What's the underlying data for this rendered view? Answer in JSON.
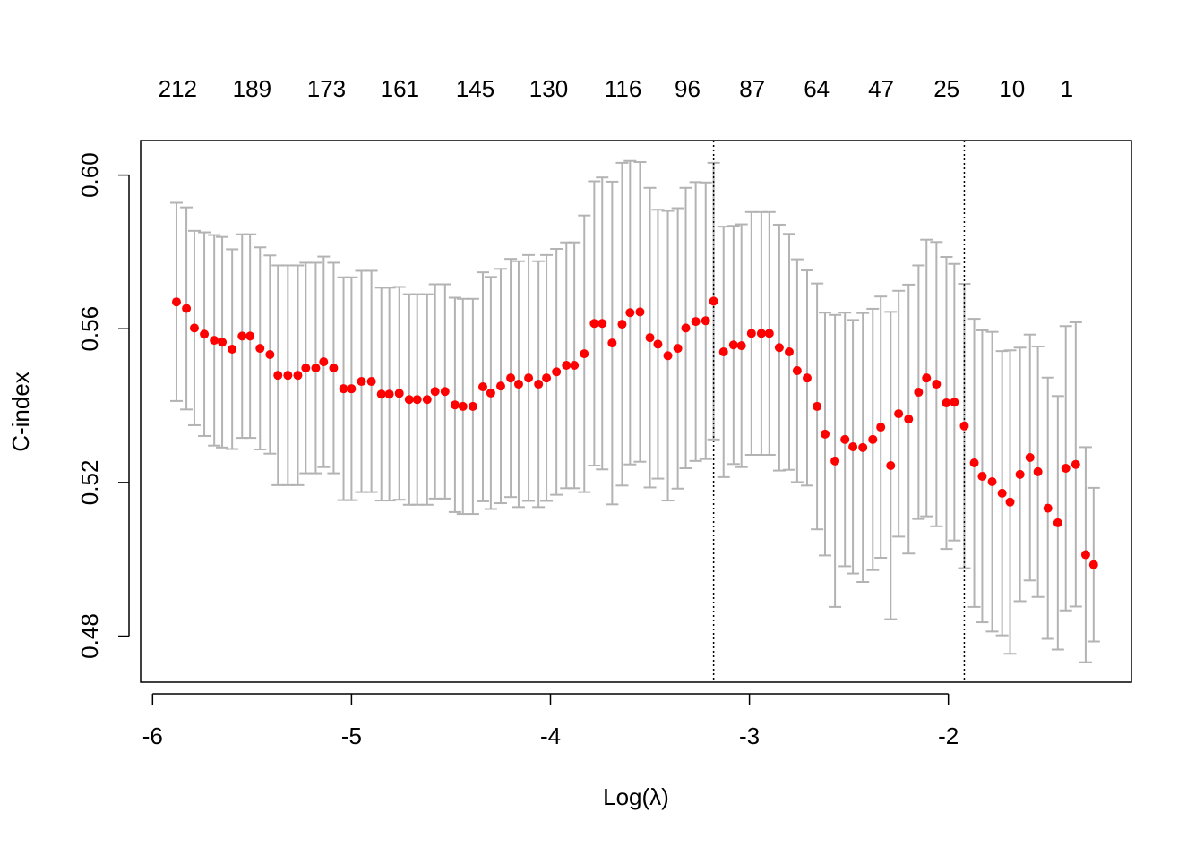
{
  "chart_data": {
    "type": "errorbar",
    "xlabel": "Log(λ)",
    "ylabel": "C-index",
    "x": [
      -5.88,
      -5.83,
      -5.79,
      -5.74,
      -5.69,
      -5.65,
      -5.6,
      -5.55,
      -5.51,
      -5.46,
      -5.41,
      -5.37,
      -5.32,
      -5.27,
      -5.23,
      -5.18,
      -5.14,
      -5.09,
      -5.04,
      -5.0,
      -4.95,
      -4.9,
      -4.85,
      -4.81,
      -4.76,
      -4.71,
      -4.67,
      -4.62,
      -4.58,
      -4.53,
      -4.48,
      -4.44,
      -4.39,
      -4.34,
      -4.3,
      -4.25,
      -4.2,
      -4.16,
      -4.11,
      -4.06,
      -4.02,
      -3.97,
      -3.92,
      -3.88,
      -3.83,
      -3.78,
      -3.74,
      -3.69,
      -3.64,
      -3.6,
      -3.55,
      -3.5,
      -3.46,
      -3.41,
      -3.36,
      -3.32,
      -3.27,
      -3.22,
      -3.18,
      -3.13,
      -3.08,
      -3.04,
      -2.99,
      -2.94,
      -2.9,
      -2.85,
      -2.8,
      -2.76,
      -2.71,
      -2.66,
      -2.62,
      -2.57,
      -2.52,
      -2.48,
      -2.43,
      -2.38,
      -2.34,
      -2.29,
      -2.25,
      -2.2,
      -2.15,
      -2.11,
      -2.06,
      -2.01,
      -1.97,
      -1.92,
      -1.87,
      -1.83,
      -1.78,
      -1.73,
      -1.69,
      -1.64,
      -1.59,
      -1.55,
      -1.5,
      -1.45,
      -1.41,
      -1.36,
      -1.31,
      -1.27
    ],
    "values": [
      0.567,
      0.5653,
      0.5602,
      0.5586,
      0.557,
      0.5565,
      0.5547,
      0.5581,
      0.5581,
      0.5549,
      0.5533,
      0.5479,
      0.5479,
      0.5479,
      0.5498,
      0.5498,
      0.5514,
      0.5498,
      0.5444,
      0.5444,
      0.5463,
      0.5463,
      0.543,
      0.543,
      0.5432,
      0.5416,
      0.5416,
      0.5416,
      0.5437,
      0.5437,
      0.5402,
      0.5398,
      0.5398,
      0.5449,
      0.5433,
      0.5451,
      0.5472,
      0.5456,
      0.5472,
      0.5456,
      0.5472,
      0.5488,
      0.5505,
      0.5505,
      0.5535,
      0.5614,
      0.5614,
      0.5563,
      0.5612,
      0.5642,
      0.5644,
      0.5577,
      0.556,
      0.553,
      0.5549,
      0.5602,
      0.5619,
      0.5621,
      0.5672,
      0.554,
      0.5558,
      0.5556,
      0.5588,
      0.5588,
      0.5588,
      0.5551,
      0.554,
      0.5491,
      0.5472,
      0.5398,
      0.5326,
      0.5256,
      0.5312,
      0.5293,
      0.5291,
      0.5312,
      0.5344,
      0.5244,
      0.5379,
      0.5365,
      0.5435,
      0.5472,
      0.5456,
      0.5407,
      0.5409,
      0.5347,
      0.5251,
      0.5216,
      0.5202,
      0.5172,
      0.5149,
      0.5221,
      0.5265,
      0.5228,
      0.5133,
      0.5095,
      0.5237,
      0.5247,
      0.5012,
      0.4986
    ],
    "errors": [
      0.0258,
      0.0263,
      0.0253,
      0.0265,
      0.0274,
      0.0274,
      0.026,
      0.0265,
      0.0265,
      0.0263,
      0.0258,
      0.0286,
      0.0286,
      0.0286,
      0.0274,
      0.0274,
      0.0274,
      0.0274,
      0.029,
      0.029,
      0.0288,
      0.0288,
      0.0277,
      0.0277,
      0.0277,
      0.0274,
      0.0274,
      0.0274,
      0.0279,
      0.0279,
      0.0279,
      0.028,
      0.028,
      0.0298,
      0.0302,
      0.0305,
      0.031,
      0.032,
      0.032,
      0.032,
      0.032,
      0.032,
      0.032,
      0.032,
      0.036,
      0.037,
      0.038,
      0.042,
      0.042,
      0.0395,
      0.039,
      0.039,
      0.035,
      0.0377,
      0.0365,
      0.0365,
      0.0363,
      0.036,
      0.036,
      0.0326,
      0.031,
      0.0316,
      0.0316,
      0.0316,
      0.0316,
      0.032,
      0.0307,
      0.029,
      0.028,
      0.032,
      0.0316,
      0.038,
      0.033,
      0.033,
      0.035,
      0.034,
      0.034,
      0.04,
      0.032,
      0.035,
      0.033,
      0.036,
      0.037,
      0.038,
      0.036,
      0.037,
      0.0375,
      0.038,
      0.039,
      0.037,
      0.0395,
      0.033,
      0.032,
      0.0326,
      0.034,
      0.033,
      0.037,
      0.037,
      0.028,
      0.02
    ],
    "color": "#ff0000",
    "error_color": "#b3b3b3",
    "xlim": [
      -6.06,
      -1.08
    ],
    "ylim": [
      0.468,
      0.609
    ],
    "xticks": [
      -6,
      -5,
      -4,
      -3,
      -2
    ],
    "yticks": [
      {
        "value": 0.6,
        "label": "0.60"
      },
      0.56,
      0.52,
      0.48
    ],
    "top_labels": [
      212,
      189,
      173,
      161,
      145,
      130,
      116,
      96,
      87,
      64,
      47,
      25,
      10,
      1
    ],
    "top_at": [
      -5.874,
      -5.5,
      -5.126,
      -4.757,
      -4.378,
      -4.009,
      -3.635,
      -3.311,
      -2.986,
      -2.662,
      -2.338,
      -2.009,
      -1.68,
      -1.405
    ],
    "vlines": [
      -3.18,
      -1.92
    ]
  }
}
